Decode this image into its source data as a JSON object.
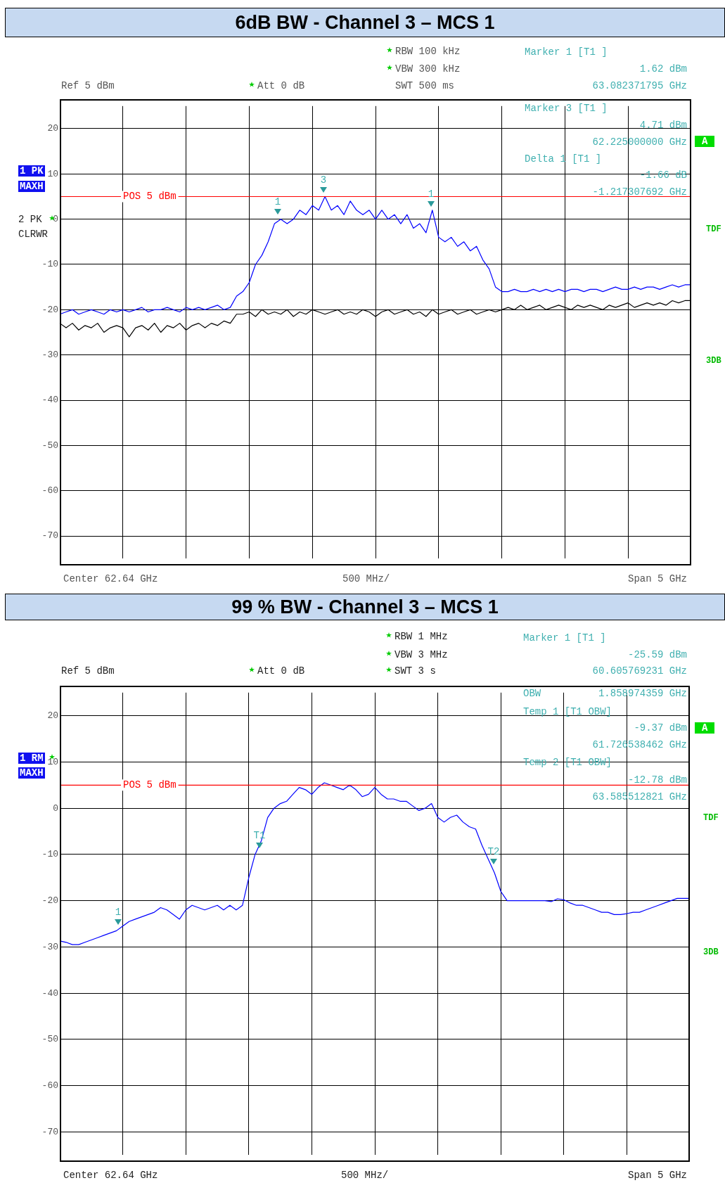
{
  "chart_data": [
    {
      "type": "line",
      "title": "6dB BW - Channel 3 – MCS 1",
      "categories": [
        null,
        null,
        null,
        null,
        null,
        null,
        null,
        null,
        null,
        null,
        null,
        null,
        null,
        null,
        null,
        null,
        null,
        null,
        null,
        null,
        null,
        null,
        null,
        null,
        null,
        null,
        null,
        null,
        null,
        null,
        null,
        null,
        null,
        null,
        null,
        null,
        null,
        null,
        null,
        null,
        null,
        null,
        null,
        null,
        null,
        null,
        null,
        null,
        null,
        null,
        null,
        null,
        null,
        null,
        null,
        null,
        null,
        null,
        null,
        null,
        null,
        null,
        null,
        null,
        null,
        null,
        null,
        null,
        null,
        null,
        null,
        null,
        null,
        null,
        null,
        null,
        null,
        null,
        null,
        null,
        null,
        null,
        null,
        null,
        null,
        null,
        null,
        null,
        null,
        null,
        null,
        null,
        null,
        null,
        null,
        null,
        null,
        null,
        null,
        null,
        null
      ],
      "series": [
        {
          "color": "#0000ff",
          "values": [
            -21,
            -20.5,
            -20,
            -21,
            -20.5,
            -20,
            -20.5,
            -21,
            -20,
            -20.5,
            -20,
            -20.5,
            -20,
            -19.5,
            -20.5,
            -20,
            -20,
            -19.5,
            -20,
            -20.5,
            -19.5,
            -20,
            -19.5,
            -20,
            -19.5,
            -19,
            -20,
            -19.5,
            -17,
            -16,
            -14,
            -10,
            -8,
            -5,
            -1,
            0,
            -1,
            0,
            2,
            1,
            3,
            2,
            5,
            2,
            3,
            1,
            4,
            2,
            1,
            2,
            0,
            2,
            0,
            1,
            -1,
            1,
            -2,
            -1,
            -3,
            2,
            -4,
            -5,
            -4,
            -6,
            -5,
            -7,
            -6,
            -9,
            -11,
            -15,
            -16,
            -16,
            -15.5,
            -16,
            -16,
            -15.5,
            -16,
            -15.5,
            -16,
            -15.5,
            -16,
            -15.5,
            -15.5,
            -16,
            -15.5,
            -15.5,
            -16,
            -15.5,
            -15,
            -15.5,
            -15.5,
            -15,
            -15.5,
            -15,
            -15,
            -15.5,
            -15,
            -14.5,
            -15,
            -14.5,
            -14.5
          ]
        },
        {
          "color": "#000000",
          "values": [
            -23,
            -24,
            -23,
            -24.5,
            -23.5,
            -24,
            -23,
            -25,
            -24,
            -23.5,
            -24,
            -26,
            -24,
            -23.5,
            -24.5,
            -23,
            -25,
            -23.5,
            -24,
            -23,
            -24.5,
            -23.5,
            -23,
            -24,
            -23,
            -23.5,
            -22.5,
            -23,
            -21,
            -21,
            -20.5,
            -21.5,
            -20,
            -21,
            -20.5,
            -21,
            -20,
            -21.5,
            -20.5,
            -21,
            -20,
            -20.5,
            -21,
            -20.5,
            -20,
            -21,
            -20.5,
            -21,
            -20,
            -20.5,
            -21.5,
            -20.5,
            -20,
            -21,
            -20.5,
            -20,
            -21,
            -20.5,
            -21.5,
            -20,
            -21,
            -20.5,
            -20,
            -21,
            -20.5,
            -20,
            -21,
            -20.5,
            -20,
            -20.5,
            -20,
            -19.5,
            -20,
            -19,
            -20,
            -19.5,
            -19,
            -20,
            -19.5,
            -19,
            -19.5,
            -20,
            -19,
            -19.5,
            -19,
            -19.5,
            -20,
            -19,
            -19.5,
            -19,
            -18.5,
            -19.5,
            -19,
            -18.5,
            -19,
            -18.5,
            -19,
            -18,
            -18.5,
            -18,
            -18
          ]
        }
      ],
      "ylim": [
        -75,
        25
      ],
      "yticks": [
        20,
        10,
        0,
        -10,
        -20,
        -30,
        -40,
        -50,
        -60,
        -70
      ],
      "tick_labels": "y",
      "grid": true,
      "ref_lines": [
        {
          "axis": "y",
          "value": 5,
          "label": "POS 5 dBm",
          "color": "#ff0000"
        }
      ],
      "annotations": [
        "RBW 100 kHz",
        "VBW 300 kHz",
        "SWT 500 ms",
        "Ref 5 dBm",
        "Att 0 dB",
        "Marker 1 [T1 ]",
        "1.62 dBm",
        "63.082371795 GHz",
        "Marker 3 [T1 ]",
        "4.71 dBm",
        "62.225000000 GHz",
        "Delta 1 [T1 ]",
        "-1.66 dB",
        "-1.217307692 GHz",
        "1 PK",
        "MAXH",
        "2 PK",
        "CLRWR",
        "A",
        "TDF",
        "3DB",
        "Center 62.64 GHz",
        "500 MHz/",
        "Span 5 GHz",
        "1",
        "3",
        "1"
      ]
    },
    {
      "type": "line",
      "title": "99 % BW - Channel 3 – MCS 1",
      "categories": [
        null,
        null,
        null,
        null,
        null,
        null,
        null,
        null,
        null,
        null,
        null,
        null,
        null,
        null,
        null,
        null,
        null,
        null,
        null,
        null,
        null,
        null,
        null,
        null,
        null,
        null,
        null,
        null,
        null,
        null,
        null,
        null,
        null,
        null,
        null,
        null,
        null,
        null,
        null,
        null,
        null,
        null,
        null,
        null,
        null,
        null,
        null,
        null,
        null,
        null,
        null,
        null,
        null,
        null,
        null,
        null,
        null,
        null,
        null,
        null,
        null,
        null,
        null,
        null,
        null,
        null,
        null,
        null,
        null,
        null,
        null,
        null,
        null,
        null,
        null,
        null,
        null,
        null,
        null,
        null,
        null,
        null,
        null,
        null,
        null,
        null,
        null,
        null,
        null,
        null,
        null,
        null,
        null,
        null,
        null,
        null,
        null,
        null,
        null,
        null,
        null
      ],
      "series": [
        {
          "color": "#0000ff",
          "values": [
            -28.7,
            -29,
            -29.5,
            -29.5,
            -29,
            -28.5,
            -28,
            -27.5,
            -27,
            -26.5,
            -25.5,
            -24.5,
            -24,
            -23.5,
            -23,
            -22.5,
            -21.5,
            -22,
            -23,
            -24,
            -22,
            -21,
            -21.5,
            -22,
            -21.5,
            -21,
            -22,
            -21,
            -22,
            -21,
            -15,
            -10,
            -7,
            -2,
            0,
            1,
            1.5,
            3,
            4.5,
            4,
            3,
            4.5,
            5.5,
            5,
            4.5,
            4,
            5,
            4,
            2.5,
            3,
            4.5,
            3,
            2,
            2,
            1.5,
            1.5,
            0.5,
            -0.5,
            0,
            1,
            -2,
            -3,
            -2,
            -1.5,
            -3,
            -4,
            -4.5,
            -8,
            -11,
            -14,
            -18,
            -20,
            -20,
            -20,
            -20,
            -20,
            -20,
            -20,
            -20.2,
            -19.6,
            -19.8,
            -20.5,
            -21,
            -21,
            -21.5,
            -22,
            -22.5,
            -22.5,
            -23,
            -23,
            -22.8,
            -22.5,
            -22.5,
            -22,
            -21.5,
            -21,
            -20.5,
            -20,
            -19.5,
            -19.5,
            -19.5
          ]
        }
      ],
      "ylim": [
        -75,
        25
      ],
      "yticks": [
        20,
        10,
        0,
        -10,
        -20,
        -30,
        -40,
        -50,
        -60,
        -70
      ],
      "tick_labels": "y",
      "grid": true,
      "ref_lines": [
        {
          "axis": "y",
          "value": 5,
          "label": "POS 5 dBm",
          "color": "#ff0000"
        }
      ],
      "annotations": [
        "RBW 1 MHz",
        "VBW 3 MHz",
        "SWT 3 s",
        "Ref 5 dBm",
        "Att 0 dB",
        "Marker 1 [T1 ]",
        "-25.59 dBm",
        "60.605769231 GHz",
        "OBW",
        "1.858974359 GHz",
        "Temp 1 [T1 OBW]",
        "-9.37 dBm",
        "61.726538462 GHz",
        "Temp 2 [T1 OBW]",
        "-12.78 dBm",
        "63.585512821 GHz",
        "1 RM",
        "MAXH",
        "A",
        "TDF",
        "3DB",
        "Center 62.64 GHz",
        "500 MHz/",
        "Span 5 GHz",
        "1",
        "T1",
        "T2"
      ]
    }
  ]
}
